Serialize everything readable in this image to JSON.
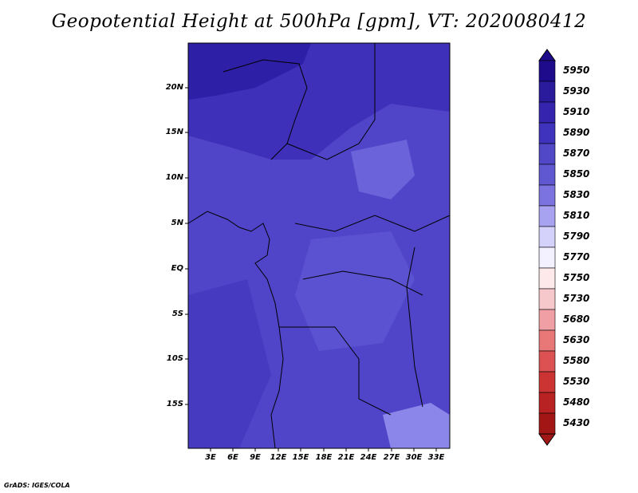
{
  "title": "Geopotential Height at 500hPa [gpm], VT: 2020080412",
  "lat_labels": [
    "20N",
    "15N",
    "10N",
    "5N",
    "EQ",
    "5S",
    "10S",
    "15S"
  ],
  "lon_labels": [
    "3E",
    "6E",
    "9E",
    "12E",
    "15E",
    "18E",
    "21E",
    "24E",
    "27E",
    "30E",
    "33E"
  ],
  "colorbar": {
    "levels": [
      "5950",
      "5930",
      "5910",
      "5890",
      "5870",
      "5850",
      "5830",
      "5810",
      "5790",
      "5770",
      "5750",
      "5730",
      "5680",
      "5630",
      "5580",
      "5530",
      "5480",
      "5430"
    ],
    "colors": [
      "#1e0b8c",
      "#2a1a9c",
      "#3524ad",
      "#3f33bd",
      "#5048c6",
      "#5f58d0",
      "#7a73e0",
      "#a8a3f0",
      "#d4d1fb",
      "#f3f1ff",
      "#fde8ea",
      "#f6c8cc",
      "#f0a0a5",
      "#e87878",
      "#dc5252",
      "#cc3434",
      "#b82222",
      "#a31616"
    ]
  },
  "footer": "GrADS: IGES/COLA"
}
